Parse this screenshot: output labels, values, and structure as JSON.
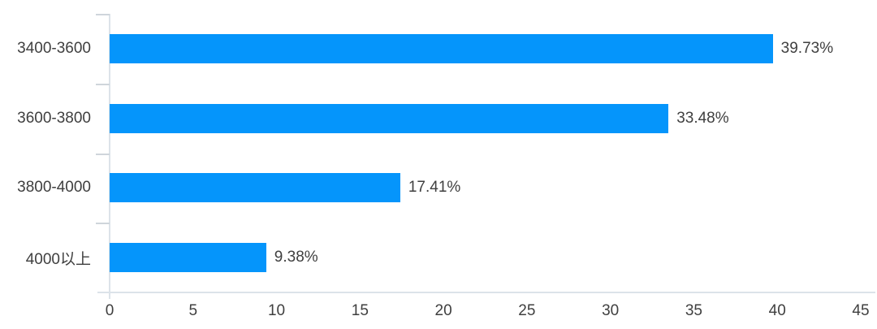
{
  "chart_data": {
    "type": "bar",
    "orientation": "horizontal",
    "title": "",
    "xlabel": "",
    "ylabel": "",
    "categories": [
      "3400-3600",
      "3600-3800",
      "3800-4000",
      "4000以上"
    ],
    "values": [
      39.73,
      33.48,
      17.41,
      9.38
    ],
    "data_labels": [
      "39.73%",
      "33.48%",
      "17.41%",
      "9.38%"
    ],
    "xlim": [
      0,
      45
    ],
    "xticks": [
      "0",
      "5",
      "10",
      "15",
      "20",
      "25",
      "30",
      "35",
      "40",
      "45"
    ],
    "grid": false,
    "legend": false,
    "colors": {
      "bar": "#0595fb",
      "axis_line": "#dce3e9",
      "category_tick": "#cfd5db",
      "text": "#3f3f3f",
      "background": "#ffffff"
    }
  }
}
